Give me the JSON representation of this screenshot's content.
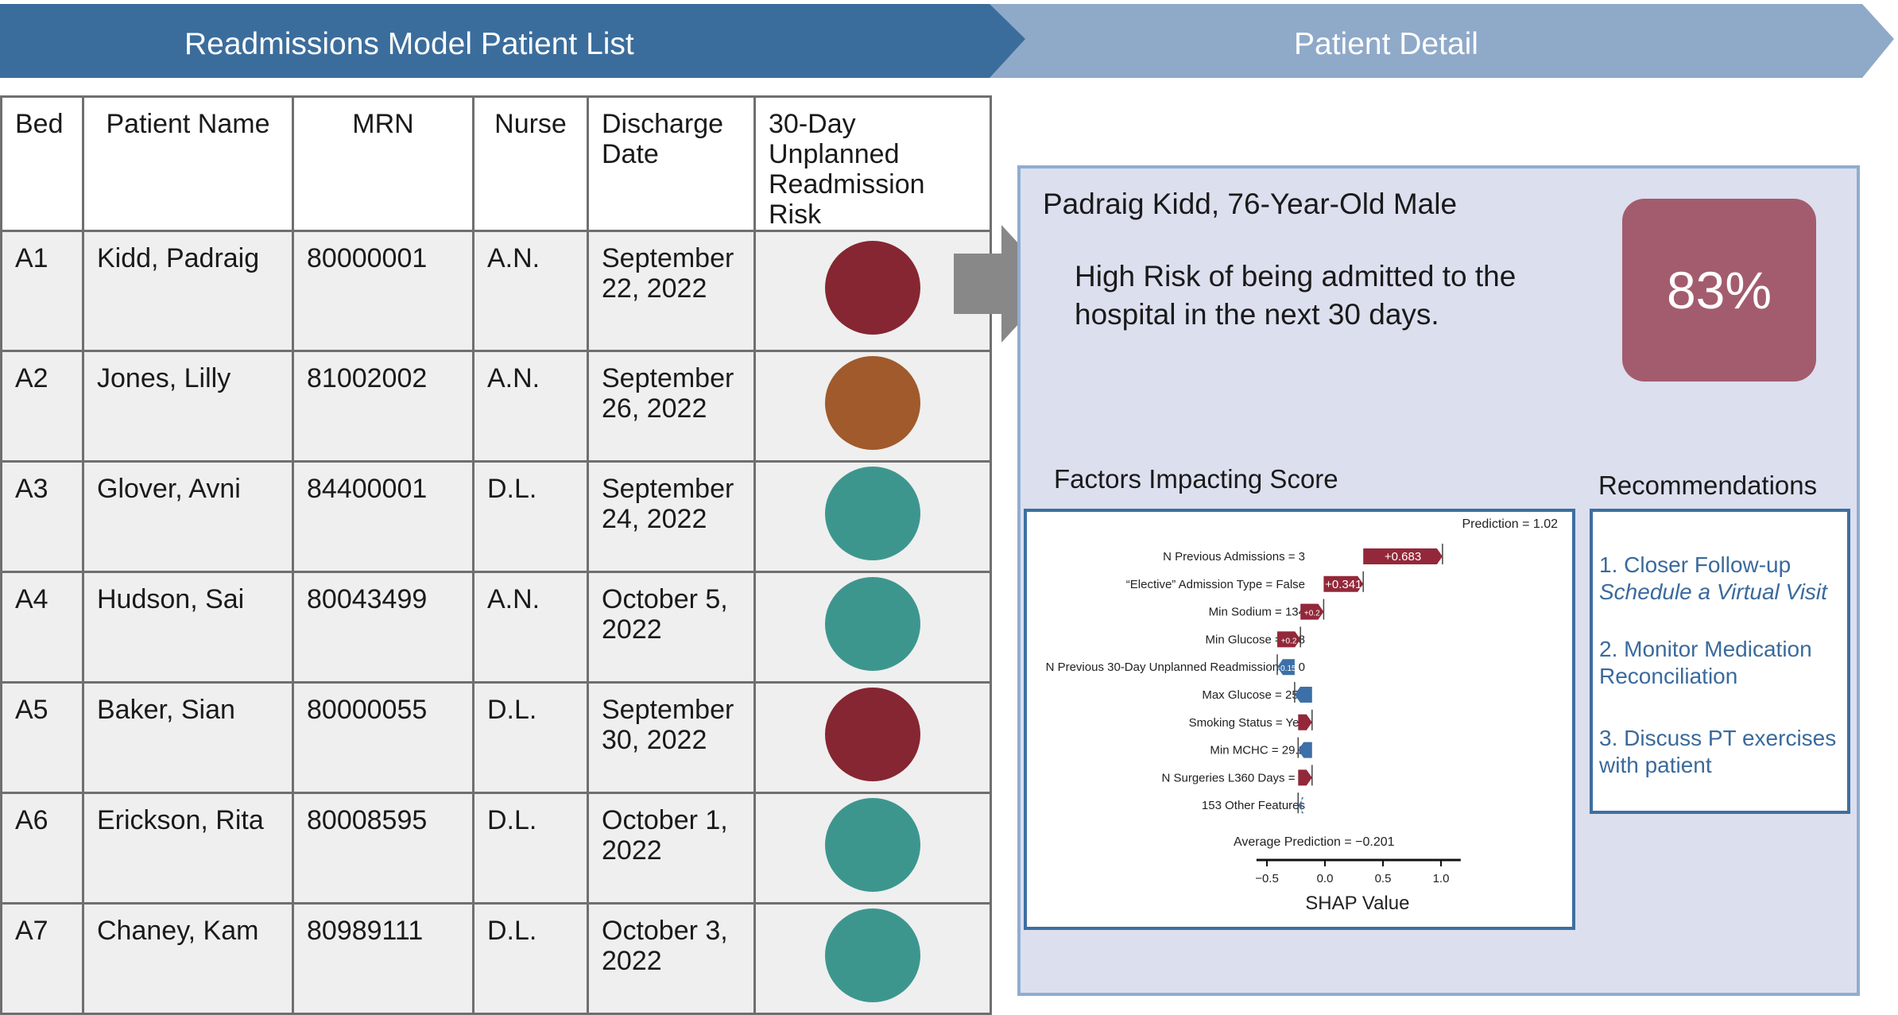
{
  "header": {
    "left_title": "Readmissions Model Patient List",
    "right_title": "Patient Detail",
    "left_color": "#3b6d9c",
    "right_color": "#8fa9c9"
  },
  "table": {
    "columns": [
      "Bed",
      "Patient Name",
      "MRN",
      "Nurse",
      "Discharge Date",
      "30-Day Unplanned Readmission Risk"
    ],
    "rows": [
      {
        "bed": "A1",
        "name": "Kidd, Padraig",
        "mrn": "80000001",
        "nurse": "A.N.",
        "date": "September 22, 2022",
        "risk_color": "#862632"
      },
      {
        "bed": "A2",
        "name": "Jones, Lilly",
        "mrn": "81002002",
        "nurse": "A.N.",
        "date": "September 26, 2022",
        "risk_color": "#a05a2c"
      },
      {
        "bed": "A3",
        "name": "Glover, Avni",
        "mrn": "84400001",
        "nurse": "D.L.",
        "date": "September 24, 2022",
        "risk_color": "#3d968e"
      },
      {
        "bed": "A4",
        "name": "Hudson, Sai",
        "mrn": "80043499",
        "nurse": "A.N.",
        "date": "October 5, 2022",
        "risk_color": "#3d968e"
      },
      {
        "bed": "A5",
        "name": "Baker, Sian",
        "mrn": "80000055",
        "nurse": "D.L.",
        "date": "September 30, 2022",
        "risk_color": "#862632"
      },
      {
        "bed": "A6",
        "name": "Erickson, Rita",
        "mrn": "80008595",
        "nurse": "D.L.",
        "date": "October 1, 2022",
        "risk_color": "#3d968e"
      },
      {
        "bed": "A7",
        "name": "Chaney, Kam",
        "mrn": "80989111",
        "nurse": "D.L.",
        "date": "October 3, 2022",
        "risk_color": "#3d968e"
      }
    ]
  },
  "detail": {
    "patient_heading": "Padraig Kidd, 76-Year-Old Male",
    "risk_text": "High Risk of being admitted to the hospital in the next 30 days.",
    "risk_percent": "83%",
    "factors_title": "Factors Impacting Score",
    "recommendations_title": "Recommendations",
    "recommendations": [
      {
        "text": "1. Closer Follow-up",
        "sub": "Schedule a Virtual Visit"
      },
      {
        "text": "2. Monitor Medication Reconciliation",
        "sub": ""
      },
      {
        "text": "3. Discuss PT exercises with patient",
        "sub": ""
      }
    ]
  },
  "shap": {
    "prediction_label": "Prediction = 1.02",
    "average_label": "Average Prediction = −0.201",
    "xlabel": "SHAP Value",
    "ticks": [
      -0.5,
      0.0,
      0.5,
      1.0
    ],
    "tick_labels": [
      "−0.5",
      "0.0",
      "0.5",
      "1.0"
    ],
    "base_value": -0.201,
    "features": [
      {
        "name": "N Previous Admissions = 3",
        "value": 0.683,
        "label": "+0.683"
      },
      {
        "name": "“Elective” Admission Type = False",
        "value": 0.341,
        "label": "+0.341"
      },
      {
        "name": "Min Sodium = 134",
        "value": 0.2,
        "label": "+0.2"
      },
      {
        "name": "Min Glucose = 238",
        "value": 0.2,
        "label": "+0.2"
      },
      {
        "name": "N Previous 30-Day Unplanned Readmissions = 0",
        "value": -0.15,
        "label": "−0.15"
      },
      {
        "name": "Max Glucose = 255",
        "value": -0.15,
        "label": ""
      },
      {
        "name": "Smoking Status = Yes",
        "value": 0.12,
        "label": ""
      },
      {
        "name": "Min MCHC = 29.2",
        "value": -0.12,
        "label": ""
      },
      {
        "name": "N Surgeries L360 Days = 2",
        "value": 0.12,
        "label": ""
      },
      {
        "name": "153 Other Features",
        "value": -0.03,
        "label": ""
      }
    ],
    "positive_color": "#93283a",
    "negative_color": "#3d6fa8"
  }
}
